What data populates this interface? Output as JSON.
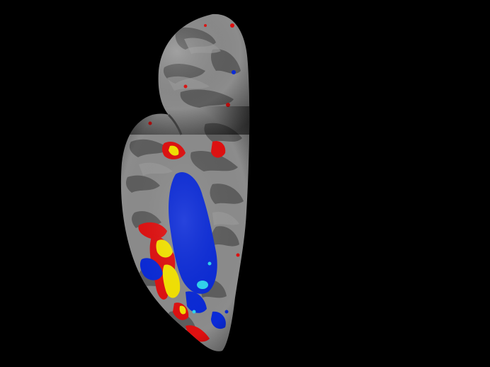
{
  "scene": {
    "background_color": "#000000",
    "subject": "inflated-cortical-surface",
    "surface_colors": {
      "gyri": "#8c8c8c",
      "sulci": "#5e5e5e"
    },
    "activation_colors": {
      "positive_low": "#e01010",
      "positive_high": "#f5e400",
      "negative_low": "#0a2ad8",
      "negative_high": "#2fd6f0"
    }
  }
}
